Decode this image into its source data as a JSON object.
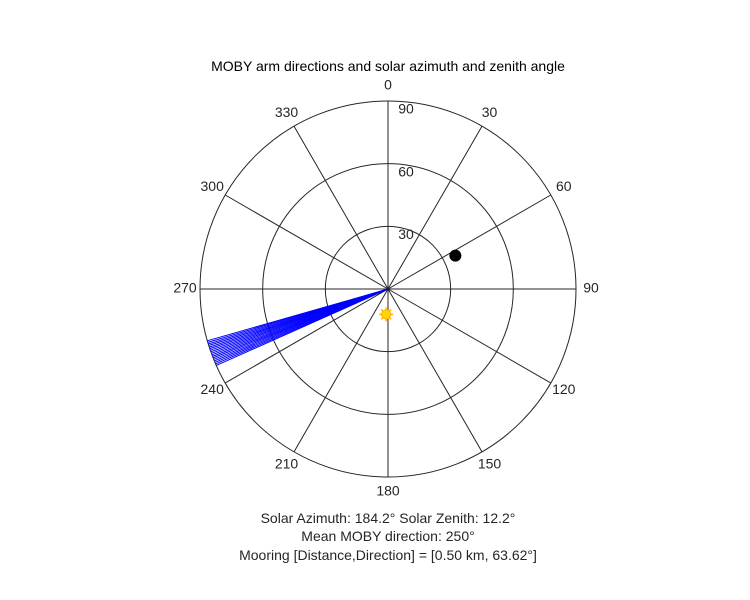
{
  "chart_data": {
    "type": "polar",
    "title": "MOBY arm directions and solar azimuth and zenith angle",
    "theta_zero_location": "top",
    "theta_direction": "clockwise",
    "theta_ticks": [
      "0",
      "30",
      "60",
      "90",
      "120",
      "150",
      "180",
      "210",
      "240",
      "270",
      "300",
      "330"
    ],
    "r_max": 90,
    "r_ticks": [
      "30",
      "60",
      "90"
    ],
    "r_tick_values": [
      30,
      60,
      90
    ],
    "arm_directions": {
      "color": "#0000ff",
      "r": 90,
      "theta_deg": [
        246.0,
        246.5,
        247.0,
        247.5,
        248.0,
        248.5,
        249.0,
        249.5,
        250.0,
        250.5,
        251.0,
        251.5,
        252.0,
        252.5,
        253.0,
        253.5,
        254.0
      ]
    },
    "mooring_marker": {
      "color": "#000000",
      "theta_deg": 63.62,
      "r": 36
    },
    "sun_marker": {
      "color": "#ffd700",
      "theta_deg": 184.2,
      "r": 12.2
    },
    "text_lines": [
      "Solar Azimuth: 184.2°    Solar Zenith: 12.2°",
      "Mean MOBY direction: 250°",
      "Mooring [Distance,Direction] = [0.50 km, 63.62°]"
    ]
  }
}
